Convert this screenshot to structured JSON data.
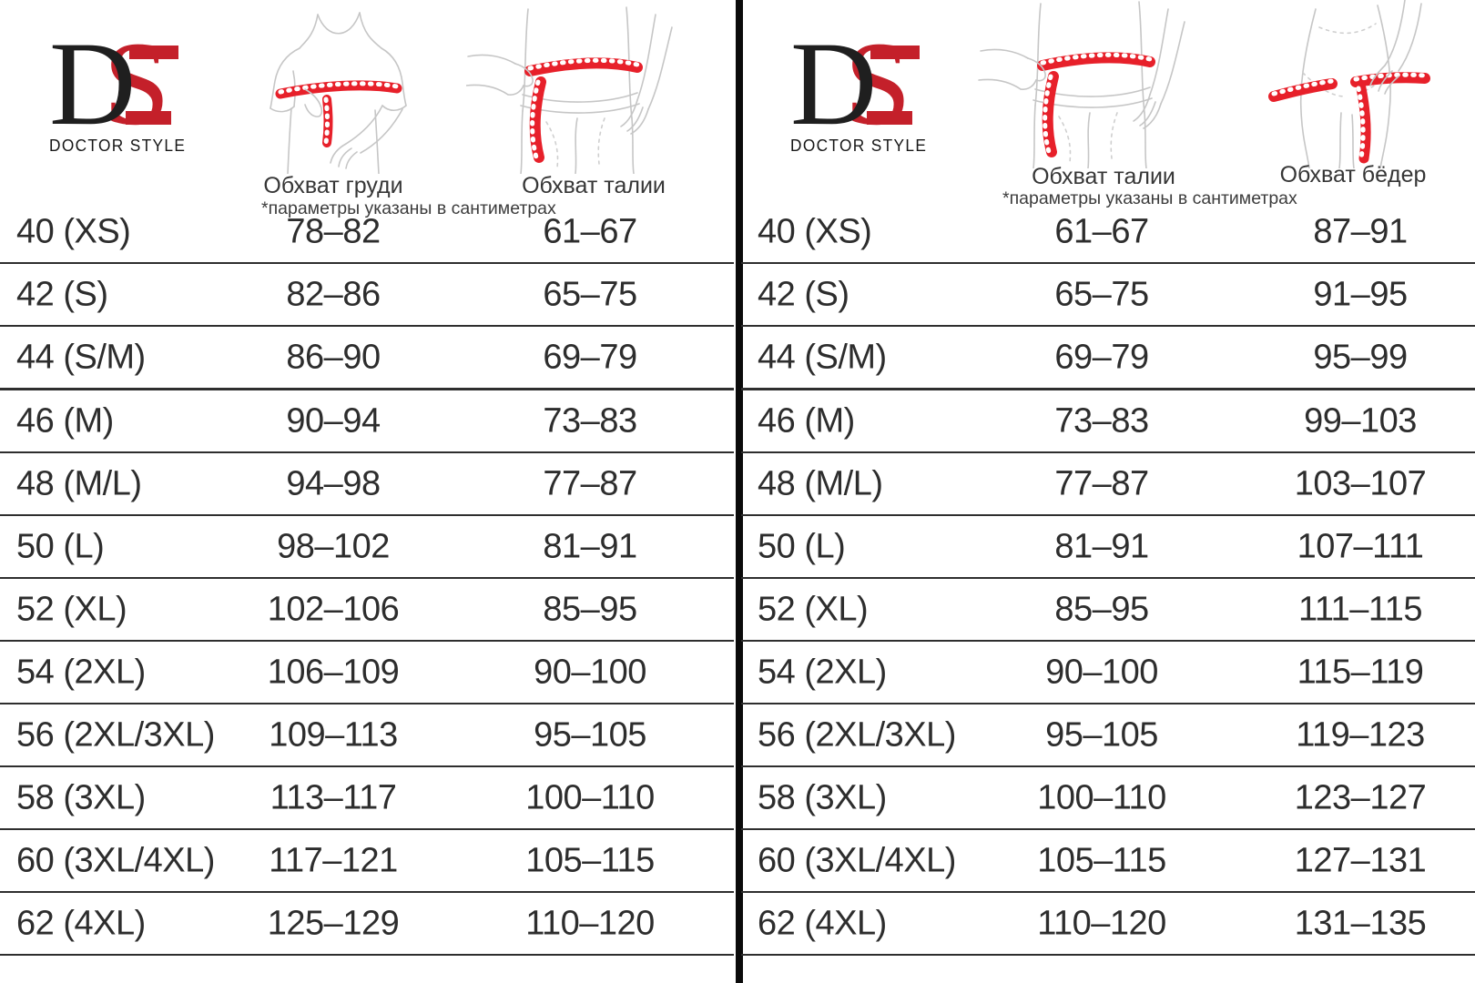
{
  "brand": {
    "d": "D",
    "s": "S",
    "name": "DOCTOR STYLE"
  },
  "colors": {
    "logo_red": "#c4202a",
    "tape_red": "#e7202a",
    "text_ink": "#2d2d2d",
    "grid_line": "#2e2e2e",
    "divider_black": "#0b0b0b",
    "sketch_gray": "#c6c6c6"
  },
  "panels": [
    {
      "side": "left",
      "note": "*параметры указаны в сантиметрах",
      "columns": [
        {
          "label": "Обхват груди",
          "illustration": "chest-measurement"
        },
        {
          "label": "Обхват талии",
          "illustration": "waist-measurement"
        }
      ],
      "rows": [
        {
          "size": "40 (XS)",
          "col1": "78–82",
          "col2": "61–67"
        },
        {
          "size": "42 (S)",
          "col1": "82–86",
          "col2": "65–75"
        },
        {
          "size": "44 (S/M)",
          "col1": "86–90",
          "col2": "69–79"
        },
        {
          "size": "46 (M)",
          "col1": "90–94",
          "col2": "73–83"
        },
        {
          "size": "48 (M/L)",
          "col1": "94–98",
          "col2": "77–87"
        },
        {
          "size": "50 (L)",
          "col1": "98–102",
          "col2": "81–91"
        },
        {
          "size": "52 (XL)",
          "col1": "102–106",
          "col2": "85–95"
        },
        {
          "size": "54 (2XL)",
          "col1": "106–109",
          "col2": "90–100"
        },
        {
          "size": "56 (2XL/3XL)",
          "col1": "109–113",
          "col2": "95–105"
        },
        {
          "size": "58 (3XL)",
          "col1": "113–117",
          "col2": "100–110"
        },
        {
          "size": "60 (3XL/4XL)",
          "col1": "117–121",
          "col2": "105–115"
        },
        {
          "size": "62 (4XL)",
          "col1": "125–129",
          "col2": "110–120"
        }
      ]
    },
    {
      "side": "right",
      "note": "*параметры указаны в сантиметрах",
      "columns": [
        {
          "label": "Обхват талии",
          "illustration": "waist-measurement"
        },
        {
          "label": "Обхват бёдер",
          "illustration": "hips-measurement"
        }
      ],
      "rows": [
        {
          "size": "40 (XS)",
          "col1": "61–67",
          "col2": "87–91"
        },
        {
          "size": "42 (S)",
          "col1": "65–75",
          "col2": "91–95"
        },
        {
          "size": "44 (S/M)",
          "col1": "69–79",
          "col2": "95–99"
        },
        {
          "size": "46 (M)",
          "col1": "73–83",
          "col2": "99–103"
        },
        {
          "size": "48 (M/L)",
          "col1": "77–87",
          "col2": "103–107"
        },
        {
          "size": "50 (L)",
          "col1": "81–91",
          "col2": "107–111"
        },
        {
          "size": "52 (XL)",
          "col1": "85–95",
          "col2": "111–115"
        },
        {
          "size": "54 (2XL)",
          "col1": "90–100",
          "col2": "115–119"
        },
        {
          "size": "56 (2XL/3XL)",
          "col1": "95–105",
          "col2": "119–123"
        },
        {
          "size": "58 (3XL)",
          "col1": "100–110",
          "col2": "123–127"
        },
        {
          "size": "60 (3XL/4XL)",
          "col1": "105–115",
          "col2": "127–131"
        },
        {
          "size": "62 (4XL)",
          "col1": "110–120",
          "col2": "131–135"
        }
      ]
    }
  ]
}
